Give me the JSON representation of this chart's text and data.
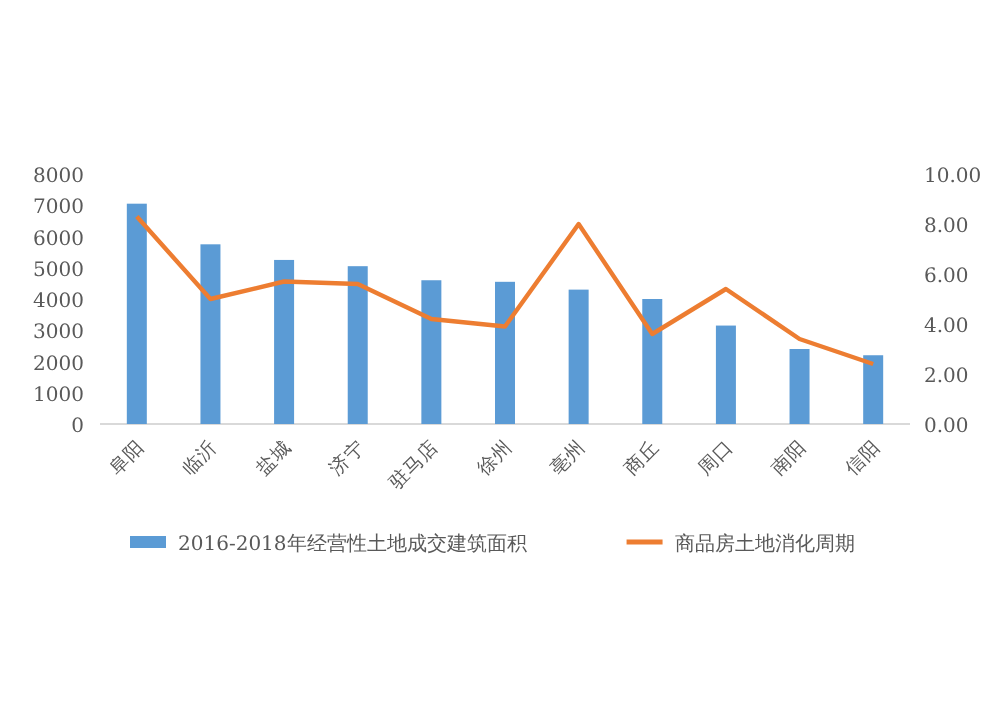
{
  "chart_data": {
    "type": "bar",
    "categories": [
      "阜阳",
      "临沂",
      "盐城",
      "济宁",
      "驻马店",
      "徐州",
      "亳州",
      "商丘",
      "周口",
      "南阳",
      "信阳"
    ],
    "series": [
      {
        "name": "2016-2018年经营性土地成交建筑面积",
        "color": "#5b9bd5",
        "values": [
          7050,
          5750,
          5250,
          5050,
          4600,
          4550,
          4300,
          4000,
          3150,
          2400,
          2200
        ]
      },
      {
        "name": "商品房土地消化周期",
        "type": "line",
        "axis": "y2",
        "color": "#ed7d31",
        "values": [
          8.3,
          5.0,
          5.7,
          5.6,
          4.2,
          3.9,
          8.0,
          3.6,
          5.4,
          3.4,
          2.4
        ]
      }
    ],
    "ylim": [
      0,
      8000
    ],
    "yticks": [
      0,
      1000,
      2000,
      3000,
      4000,
      5000,
      6000,
      7000,
      8000
    ],
    "y2lim": [
      0,
      10
    ],
    "y2ticks": [
      {
        "value": 0,
        "label": "0.00"
      },
      {
        "value": 2,
        "label": "2.00"
      },
      {
        "value": 4,
        "label": "4.00"
      },
      {
        "value": 6,
        "label": "6.00"
      },
      {
        "value": 8,
        "label": "8.00"
      },
      {
        "value": 10,
        "label": "10.00"
      }
    ],
    "grid": false,
    "legend": "bottom",
    "marker": "none"
  }
}
